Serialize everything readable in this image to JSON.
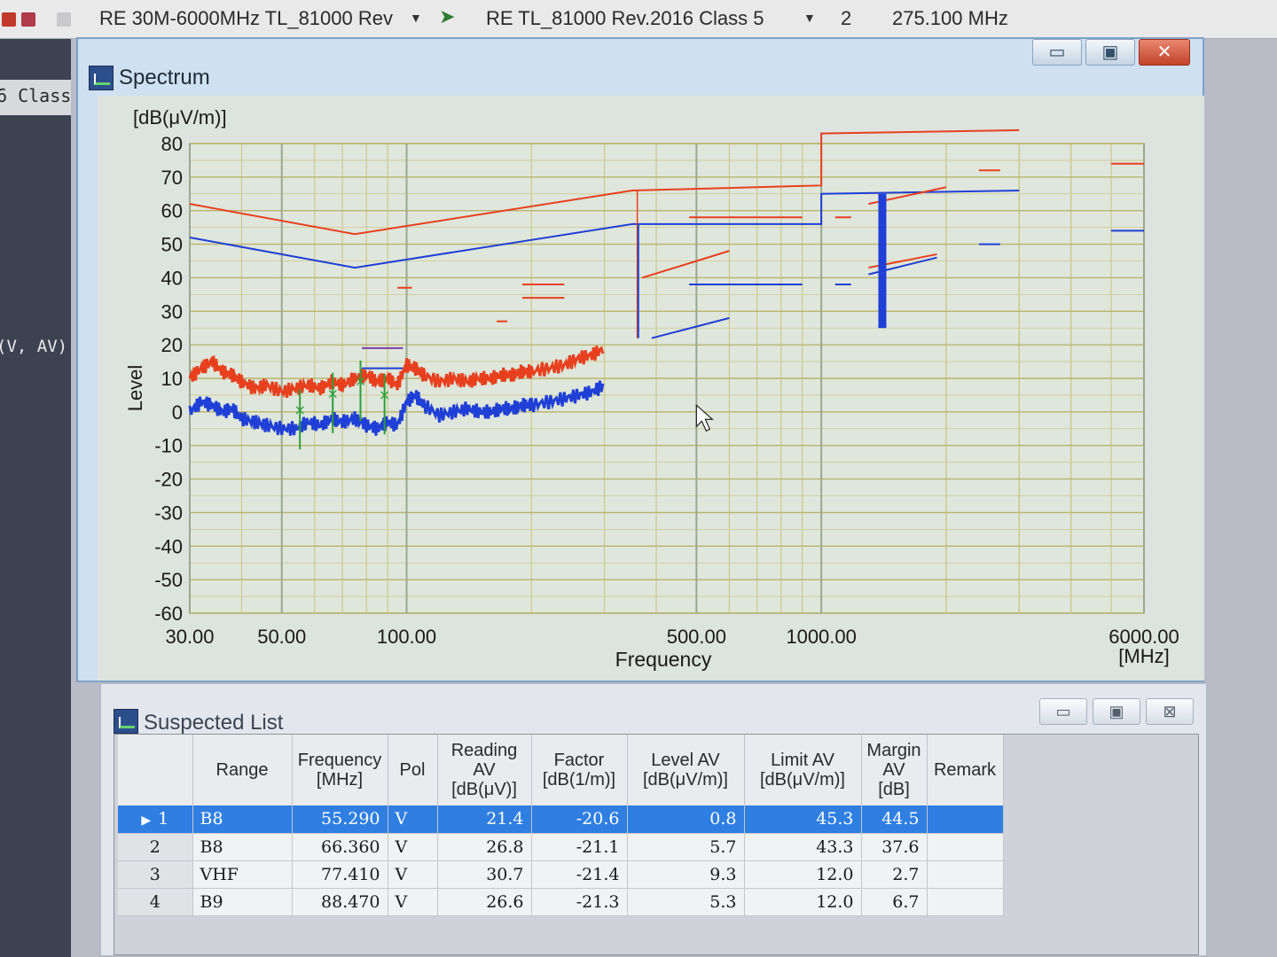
{
  "toolbar": {
    "profile_label": "RE 30M-6000MHz TL_81000 Rev",
    "standard_label": "RE TL_81000 Rev.2016 Class 5",
    "field_value": "2",
    "freq_value": "275.100 MHz"
  },
  "left_panel": {
    "label_1": "6 Class",
    "label_2": "(V, AV)"
  },
  "spectrum": {
    "title": "Spectrum",
    "buttons": {
      "minimize": "▭",
      "maximize": "▣",
      "close": "✕"
    }
  },
  "chart_data": {
    "type": "line",
    "ylabel": "Level",
    "yunit": "[dB(μV/m)]",
    "xlabel": "Frequency",
    "xunit": "[MHz]",
    "xscale": "log",
    "xlim": [
      30,
      6000
    ],
    "ylim": [
      -60,
      80
    ],
    "y_ticks": [
      80,
      70,
      60,
      50,
      40,
      30,
      20,
      10,
      0,
      -10,
      -20,
      -30,
      -40,
      -50,
      -60
    ],
    "x_ticks": [
      30,
      50,
      100,
      500,
      1000,
      6000
    ],
    "x_tick_labels": [
      "30.00",
      "50.00",
      "100.00",
      "500.00",
      "1000.00",
      "6000.00"
    ],
    "grid": true,
    "colors": {
      "peak": "#e8401e",
      "average": "#1f3fd6",
      "marker": "#2e9e3a",
      "segment": "#7c3fa0"
    },
    "limit_lines": [
      {
        "color": "#e8401e",
        "points": [
          [
            30,
            62
          ],
          [
            75,
            53
          ],
          [
            350,
            66
          ],
          [
            1000,
            67.5
          ],
          [
            1000,
            83
          ],
          [
            3000,
            84
          ]
        ]
      },
      {
        "color": "#1f3fd6",
        "points": [
          [
            30,
            52
          ],
          [
            75,
            43
          ],
          [
            350,
            56
          ],
          [
            1000,
            56
          ],
          [
            1000,
            65
          ],
          [
            3000,
            66
          ]
        ]
      }
    ],
    "segment_lines": [
      {
        "color": "#e8401e",
        "points": [
          [
            370,
            40
          ],
          [
            600,
            48
          ]
        ]
      },
      {
        "color": "#e8401e",
        "points": [
          [
            480,
            58
          ],
          [
            900,
            58
          ]
        ]
      },
      {
        "color": "#1f3fd6",
        "points": [
          [
            480,
            38
          ],
          [
            900,
            38
          ]
        ]
      },
      {
        "color": "#1f3fd6",
        "points": [
          [
            390,
            22
          ],
          [
            600,
            28
          ]
        ]
      },
      {
        "color": "#e8401e",
        "points": [
          [
            1300,
            43
          ],
          [
            1900,
            47
          ]
        ]
      },
      {
        "color": "#1f3fd6",
        "points": [
          [
            1300,
            41
          ],
          [
            1900,
            46
          ]
        ]
      },
      {
        "color": "#e8401e",
        "points": [
          [
            1300,
            62
          ],
          [
            2000,
            67
          ]
        ]
      },
      {
        "color": "#e8401e",
        "points": [
          [
            190,
            38
          ],
          [
            240,
            38
          ]
        ]
      },
      {
        "color": "#e8401e",
        "points": [
          [
            190,
            34
          ],
          [
            240,
            34
          ]
        ]
      },
      {
        "color": "#e8401e",
        "points": [
          [
            95,
            37
          ],
          [
            103,
            37
          ]
        ]
      },
      {
        "color": "#e8401e",
        "points": [
          [
            165,
            27
          ],
          [
            175,
            27
          ]
        ]
      },
      {
        "color": "#7c3fa0",
        "points": [
          [
            78,
            19
          ],
          [
            98,
            19
          ]
        ]
      },
      {
        "color": "#1f3fd6",
        "points": [
          [
            78,
            13
          ],
          [
            98,
            13
          ]
        ]
      },
      {
        "color": "#e8401e",
        "points": [
          [
            2400,
            72
          ],
          [
            2700,
            72
          ]
        ]
      },
      {
        "color": "#1f3fd6",
        "points": [
          [
            2400,
            50
          ],
          [
            2700,
            50
          ]
        ]
      },
      {
        "color": "#e8401e",
        "points": [
          [
            5000,
            74
          ],
          [
            6000,
            74
          ]
        ]
      },
      {
        "color": "#1f3fd6",
        "points": [
          [
            5000,
            54
          ],
          [
            6000,
            54
          ]
        ]
      },
      {
        "color": "#e8401e",
        "points": [
          [
            1080,
            58
          ],
          [
            1180,
            58
          ]
        ]
      },
      {
        "color": "#1f3fd6",
        "points": [
          [
            1080,
            38
          ],
          [
            1180,
            38
          ]
        ]
      }
    ],
    "series": [
      {
        "name": "",
        "color": "#e8401e",
        "x": [
          30,
          32,
          34,
          36,
          38,
          40,
          43,
          46,
          50,
          54,
          58,
          62,
          66,
          70,
          75,
          80,
          85,
          90,
          95,
          100,
          105,
          110,
          120,
          130,
          140,
          150,
          160,
          170,
          180,
          190,
          200,
          220,
          240,
          260,
          280,
          300
        ],
        "y": [
          10,
          13,
          15,
          12,
          11,
          9,
          7,
          8,
          6,
          7,
          8,
          7,
          9,
          8,
          10,
          11,
          9,
          10,
          8,
          14,
          13,
          11,
          9,
          10,
          9,
          10,
          10,
          11,
          11,
          12,
          12,
          13,
          14,
          16,
          17,
          19
        ]
      },
      {
        "name": "",
        "color": "#1f3fd6",
        "x": [
          30,
          32,
          34,
          36,
          38,
          40,
          43,
          46,
          50,
          54,
          58,
          62,
          66,
          70,
          75,
          80,
          85,
          90,
          95,
          100,
          105,
          110,
          120,
          130,
          140,
          150,
          160,
          170,
          180,
          190,
          200,
          220,
          240,
          260,
          280,
          300
        ],
        "y": [
          0,
          3,
          2,
          0,
          1,
          -2,
          -3,
          -4,
          -5,
          -5,
          -3,
          -4,
          -2,
          -3,
          -2,
          -4,
          -5,
          -3,
          -4,
          3,
          5,
          2,
          -1,
          0,
          1,
          0,
          0,
          1,
          1,
          2,
          2,
          3,
          4,
          5,
          6,
          8
        ]
      }
    ],
    "markers": [
      {
        "x": 55.29,
        "y": 0.8
      },
      {
        "x": 66.36,
        "y": 5.7
      },
      {
        "x": 77.41,
        "y": 9.3
      },
      {
        "x": 88.47,
        "y": 5.3
      }
    ],
    "cursor": {
      "x": 500,
      "y": 2
    }
  },
  "suspected": {
    "title": "Suspected List",
    "buttons": {
      "minimize": "▭",
      "maximize": "▣",
      "close": "⊠"
    },
    "headers": {
      "index": "",
      "range": "Range",
      "frequency": "Frequency [MHz]",
      "pol": "Pol",
      "reading": "Reading AV [dB(μV)]",
      "factor": "Factor [dB(1/m)]",
      "level": "Level AV [dB(μV/m)]",
      "limit": "Limit AV [dB(μV/m)]",
      "margin": "Margin AV [dB]",
      "remark": "Remark"
    },
    "rows": [
      {
        "index": "1",
        "range": "B8",
        "frequency": "55.290",
        "pol": "V",
        "reading": "21.4",
        "factor": "-20.6",
        "level": "0.8",
        "limit": "45.3",
        "margin": "44.5",
        "remark": ""
      },
      {
        "index": "2",
        "range": "B8",
        "frequency": "66.360",
        "pol": "V",
        "reading": "26.8",
        "factor": "-21.1",
        "level": "5.7",
        "limit": "43.3",
        "margin": "37.6",
        "remark": ""
      },
      {
        "index": "3",
        "range": "VHF",
        "frequency": "77.410",
        "pol": "V",
        "reading": "30.7",
        "factor": "-21.4",
        "level": "9.3",
        "limit": "12.0",
        "margin": "2.7",
        "remark": ""
      },
      {
        "index": "4",
        "range": "B9",
        "frequency": "88.470",
        "pol": "V",
        "reading": "26.6",
        "factor": "-21.3",
        "level": "5.3",
        "limit": "12.0",
        "margin": "6.7",
        "remark": ""
      }
    ]
  }
}
